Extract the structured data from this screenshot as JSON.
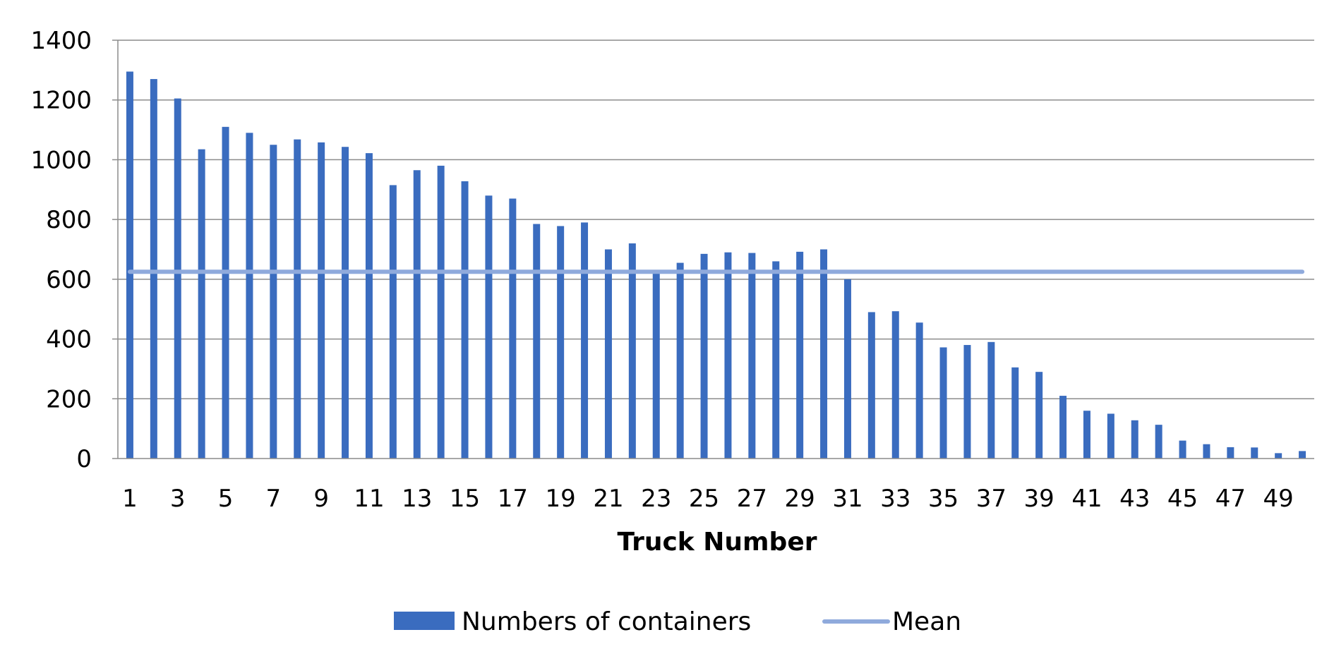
{
  "chart_data": {
    "type": "bar",
    "title": "",
    "xlabel": "Truck Number",
    "ylabel": "",
    "ylim": [
      0,
      1400
    ],
    "y_ticks": [
      0,
      200,
      400,
      600,
      800,
      1000,
      1200,
      1400
    ],
    "x_tick_labels_shown": [
      "1",
      "3",
      "5",
      "7",
      "9",
      "11",
      "13",
      "15",
      "17",
      "19",
      "21",
      "23",
      "25",
      "27",
      "29",
      "31",
      "33",
      "35",
      "37",
      "39",
      "41",
      "43",
      "45",
      "47",
      "49"
    ],
    "grid": "horizontal",
    "legend_position": "bottom",
    "categories": [
      "1",
      "2",
      "3",
      "4",
      "5",
      "6",
      "7",
      "8",
      "9",
      "10",
      "11",
      "12",
      "13",
      "14",
      "15",
      "16",
      "17",
      "18",
      "19",
      "20",
      "21",
      "22",
      "23",
      "24",
      "25",
      "26",
      "27",
      "28",
      "29",
      "30",
      "31",
      "32",
      "33",
      "34",
      "35",
      "36",
      "37",
      "38",
      "39",
      "40",
      "41",
      "42",
      "43",
      "44",
      "45",
      "46",
      "47",
      "48",
      "49",
      "50"
    ],
    "series": [
      {
        "name": "Numbers of containers",
        "kind": "bar",
        "color": "#3a6cbf",
        "values": [
          1295,
          1270,
          1205,
          1035,
          1110,
          1090,
          1050,
          1068,
          1058,
          1043,
          1022,
          915,
          965,
          980,
          928,
          880,
          870,
          785,
          778,
          790,
          700,
          720,
          620,
          655,
          685,
          690,
          688,
          660,
          692,
          700,
          600,
          490,
          493,
          455,
          372,
          380,
          390,
          305,
          290,
          210,
          160,
          150,
          128,
          113,
          60,
          48,
          38,
          37,
          18,
          25
        ]
      },
      {
        "name": "Mean",
        "kind": "line",
        "color": "#8faadc",
        "values": [
          625,
          625,
          625,
          625,
          625,
          625,
          625,
          625,
          625,
          625,
          625,
          625,
          625,
          625,
          625,
          625,
          625,
          625,
          625,
          625,
          625,
          625,
          625,
          625,
          625,
          625,
          625,
          625,
          625,
          625,
          625,
          625,
          625,
          625,
          625,
          625,
          625,
          625,
          625,
          625,
          625,
          625,
          625,
          625,
          625,
          625,
          625,
          625,
          625,
          625
        ]
      }
    ]
  }
}
